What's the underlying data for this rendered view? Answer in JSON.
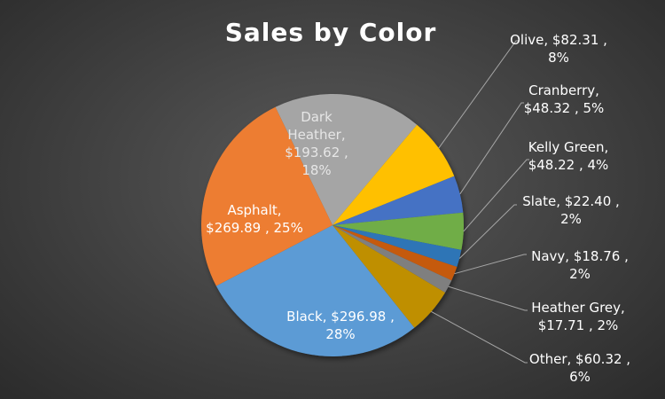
{
  "chart_data": {
    "type": "pie",
    "title": "Sales by Color",
    "slices": [
      {
        "name": "Dark Heather",
        "value": 193.62,
        "percent": 18,
        "color": "#a5a5a5",
        "label_lines": [
          "Dark",
          "Heather,",
          "$193.62 ,",
          "18%"
        ],
        "label_color": "#e6e6e6"
      },
      {
        "name": "Olive",
        "value": 82.31,
        "percent": 8,
        "color": "#ffc000",
        "label_lines": [
          "Olive,  $82.31 ,",
          "8%"
        ],
        "label_color": "#ffffff"
      },
      {
        "name": "Cranberry",
        "value": 48.32,
        "percent": 5,
        "color": "#4472c4",
        "label_lines": [
          "Cranberry,",
          "$48.32 , 5%"
        ],
        "label_color": "#ffffff"
      },
      {
        "name": "Kelly Green",
        "value": 48.22,
        "percent": 4,
        "color": "#70ad47",
        "label_lines": [
          "Kelly Green,",
          "$48.22 , 4%"
        ],
        "label_color": "#ffffff"
      },
      {
        "name": "Slate",
        "value": 22.4,
        "percent": 2,
        "color": "#2e75b6",
        "label_lines": [
          "Slate,  $22.40 ,",
          "2%"
        ],
        "label_color": "#ffffff"
      },
      {
        "name": "Navy",
        "value": 18.76,
        "percent": 2,
        "color": "#c55a11",
        "label_lines": [
          "Navy,  $18.76 ,",
          "2%"
        ],
        "label_color": "#ffffff"
      },
      {
        "name": "Heather Grey",
        "value": 17.71,
        "percent": 2,
        "color": "#7f7f7f",
        "label_lines": [
          "Heather Grey,",
          "$17.71 , 2%"
        ],
        "label_color": "#ffffff"
      },
      {
        "name": "Other",
        "value": 60.32,
        "percent": 6,
        "color": "#bf8f00",
        "label_lines": [
          "Other,  $60.32 ,",
          "6%"
        ],
        "label_color": "#ffffff"
      },
      {
        "name": "Black",
        "value": 296.98,
        "percent": 28,
        "color": "#5b9bd5",
        "label_lines": [
          "Black,  $296.98 ,",
          "28%"
        ],
        "label_color": "#ffffff"
      },
      {
        "name": "Asphalt",
        "value": 269.89,
        "percent": 25,
        "color": "#ed7d31",
        "label_lines": [
          "Asphalt,",
          "$269.89 , 25%"
        ],
        "label_color": "#ffffff"
      }
    ]
  }
}
